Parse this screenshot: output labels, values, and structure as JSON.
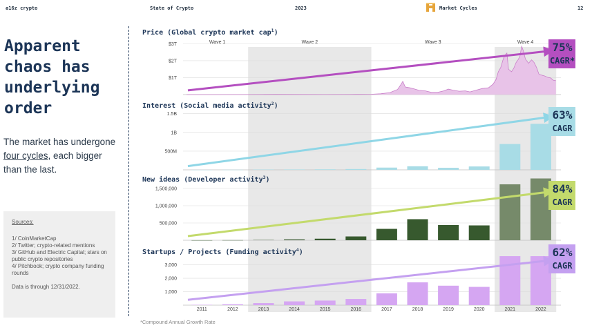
{
  "header": {
    "brand": "a16z crypto",
    "title": "State of Crypto",
    "year": "2023",
    "section": "Market Cycles",
    "page": "12"
  },
  "headline": "Apparent chaos has underlying order",
  "subtext": {
    "before": "The market has undergone ",
    "link": "four cycles",
    "after": ", each bigger than the last."
  },
  "sources": {
    "title": "Sources:",
    "items": [
      "1/ CoinMarketCap",
      "2/ Twitter; crypto-related mentions",
      "3/ GitHub and Electric Capital; stars on public crypto repositories",
      "4/ Pitchbook; crypto company funding rounds"
    ],
    "note": "Data is through 12/31/2022."
  },
  "footnote": "*Compound Annual Growth Rate",
  "colors": {
    "shade": "#e8e8e8",
    "price": "#b44fc0",
    "price_fill": "#e8c3e8",
    "interest": "#a8dce6",
    "interest_arrow": "#8fd6e6",
    "dev": "#37592e",
    "dev_late": "#768a6a",
    "dev_arrow": "#c3da6c",
    "funding": "#d5a6f2",
    "funding_arrow": "#c4a0f0"
  },
  "chart_data": {
    "years": [
      "2011",
      "2012",
      "2013",
      "2014",
      "2015",
      "2016",
      "2017",
      "2018",
      "2019",
      "2020",
      "2021",
      "2022"
    ],
    "waves": [
      {
        "name": "Wave 1",
        "start": 2011,
        "end": 2012
      },
      {
        "name": "Wave 2",
        "start": 2013,
        "end": 2016
      },
      {
        "name": "Wave 3",
        "start": 2017,
        "end": 2020
      },
      {
        "name": "Wave 4",
        "start": 2021,
        "end": 2022
      }
    ],
    "panels": [
      {
        "id": "price",
        "type": "area",
        "title": "Price (Global crypto market cap",
        "sup": "1",
        "y_ticks": [
          {
            "v": 1,
            "label": "$1T"
          },
          {
            "v": 2,
            "label": "$2T"
          },
          {
            "v": 3,
            "label": "$3T"
          }
        ],
        "ylim": [
          0,
          3.3
        ],
        "series": [
          [
            2011.0,
            0
          ],
          [
            2012.0,
            0.002
          ],
          [
            2013.0,
            0.005
          ],
          [
            2013.9,
            0.012
          ],
          [
            2014.5,
            0.008
          ],
          [
            2015.5,
            0.005
          ],
          [
            2016.5,
            0.012
          ],
          [
            2017.0,
            0.02
          ],
          [
            2017.3,
            0.05
          ],
          [
            2017.6,
            0.12
          ],
          [
            2017.85,
            0.3
          ],
          [
            2017.96,
            0.6
          ],
          [
            2018.02,
            0.78
          ],
          [
            2018.1,
            0.45
          ],
          [
            2018.25,
            0.4
          ],
          [
            2018.4,
            0.33
          ],
          [
            2018.55,
            0.25
          ],
          [
            2018.75,
            0.22
          ],
          [
            2018.95,
            0.13
          ],
          [
            2019.15,
            0.13
          ],
          [
            2019.35,
            0.22
          ],
          [
            2019.5,
            0.32
          ],
          [
            2019.65,
            0.26
          ],
          [
            2019.85,
            0.2
          ],
          [
            2020.05,
            0.22
          ],
          [
            2020.2,
            0.16
          ],
          [
            2020.4,
            0.26
          ],
          [
            2020.6,
            0.36
          ],
          [
            2020.8,
            0.4
          ],
          [
            2020.95,
            0.62
          ],
          [
            2021.05,
            0.9
          ],
          [
            2021.12,
            1.35
          ],
          [
            2021.2,
            1.6
          ],
          [
            2021.28,
            2.1
          ],
          [
            2021.33,
            2.3
          ],
          [
            2021.4,
            2.45
          ],
          [
            2021.45,
            1.5
          ],
          [
            2021.55,
            1.35
          ],
          [
            2021.62,
            1.55
          ],
          [
            2021.7,
            1.9
          ],
          [
            2021.76,
            2.05
          ],
          [
            2021.82,
            2.25
          ],
          [
            2021.88,
            2.85
          ],
          [
            2021.93,
            2.6
          ],
          [
            2022.0,
            2.1
          ],
          [
            2022.1,
            1.85
          ],
          [
            2022.2,
            2.05
          ],
          [
            2022.28,
            1.9
          ],
          [
            2022.36,
            1.6
          ],
          [
            2022.44,
            1.2
          ],
          [
            2022.52,
            1.15
          ],
          [
            2022.62,
            1.1
          ],
          [
            2022.72,
            1.02
          ],
          [
            2022.82,
            0.98
          ],
          [
            2022.9,
            0.85
          ],
          [
            2022.99,
            0.82
          ]
        ],
        "trend": {
          "from": 0.25,
          "to": 2.55
        },
        "cagr": {
          "value": "75%",
          "label": "CAGR*"
        }
      },
      {
        "id": "interest",
        "type": "bar",
        "title": "Interest (Social media activity",
        "sup": "2",
        "y_ticks": [
          {
            "v": 500000000,
            "label": "500M"
          },
          {
            "v": 1000000000,
            "label": "1B"
          },
          {
            "v": 1500000000,
            "label": "1.5B"
          }
        ],
        "ylim": [
          0,
          1550000000
        ],
        "values": [
          1000000,
          3000000,
          8000000,
          10000000,
          14000000,
          22000000,
          60000000,
          95000000,
          55000000,
          90000000,
          690000000,
          1230000000
        ],
        "trend": {
          "from": 100000000,
          "to": 1400000000
        },
        "cagr": {
          "value": "63%",
          "label": "CAGR"
        }
      },
      {
        "id": "dev",
        "type": "bar",
        "title": "New ideas (Developer activity",
        "sup": "3",
        "y_ticks": [
          {
            "v": 500000,
            "label": "500,000"
          },
          {
            "v": 1000000,
            "label": "1,000,000"
          },
          {
            "v": 1500000,
            "label": "1,500,000"
          }
        ],
        "ylim": [
          0,
          1600000
        ],
        "values": [
          1000,
          3000,
          8000,
          25000,
          45000,
          110000,
          330000,
          610000,
          440000,
          430000,
          1620000,
          1790000
        ],
        "trend": {
          "from": 120000,
          "to": 1390000
        },
        "cagr": {
          "value": "84%",
          "label": "CAGR"
        }
      },
      {
        "id": "funding",
        "type": "bar",
        "title": "Startups / Projects (Funding activity",
        "sup": "4",
        "y_ticks": [
          {
            "v": 1000,
            "label": "1,000"
          },
          {
            "v": 2000,
            "label": "2,000"
          },
          {
            "v": 3000,
            "label": "3,000"
          }
        ],
        "ylim": [
          0,
          3600
        ],
        "values": [
          25,
          65,
          150,
          280,
          340,
          460,
          880,
          1700,
          1450,
          1360,
          3650,
          3650
        ],
        "trend": {
          "from": 400,
          "to": 3300
        },
        "cagr": {
          "value": "62%",
          "label": "CAGR"
        }
      }
    ]
  }
}
